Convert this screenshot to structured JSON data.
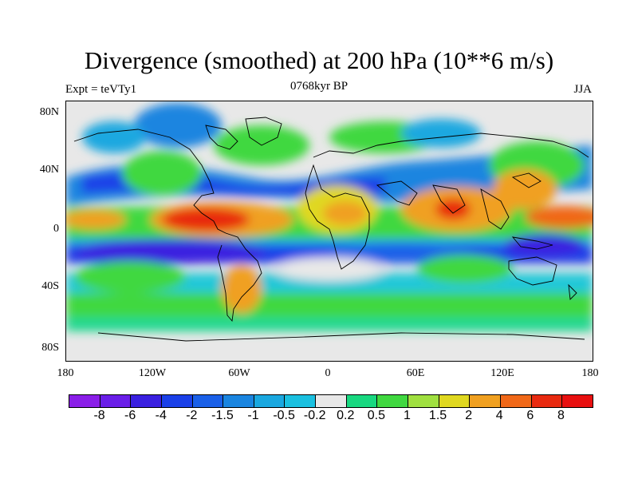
{
  "title": "Divergence (smoothed) at 200 hPa (10**6 m/s)",
  "left_subtitle": "Expt = teVTy1",
  "center_subtitle": "0768kyr BP",
  "right_subtitle": "JJA",
  "lat_labels": [
    "80N",
    "40N",
    "0",
    "40S",
    "80S"
  ],
  "lon_labels": [
    "180",
    "120W",
    "60W",
    "0",
    "60E",
    "120E",
    "180"
  ],
  "colorbar": {
    "labels": [
      "-8",
      "-6",
      "-4",
      "-2",
      "-1.5",
      "-1",
      "-0.5",
      "-0.2",
      "0.2",
      "0.5",
      "1",
      "1.5",
      "2",
      "4",
      "6",
      "8"
    ],
    "colors": [
      "#8a1ee8",
      "#6a1ee8",
      "#3a20e0",
      "#1a40e8",
      "#1a60e8",
      "#1a85e0",
      "#1aa8e0",
      "#1ac0e0",
      "#e8e8e8",
      "#18d880",
      "#40d840",
      "#a0e040",
      "#e0d820",
      "#f0a020",
      "#f06818",
      "#e82a10",
      "#e81010"
    ]
  }
}
